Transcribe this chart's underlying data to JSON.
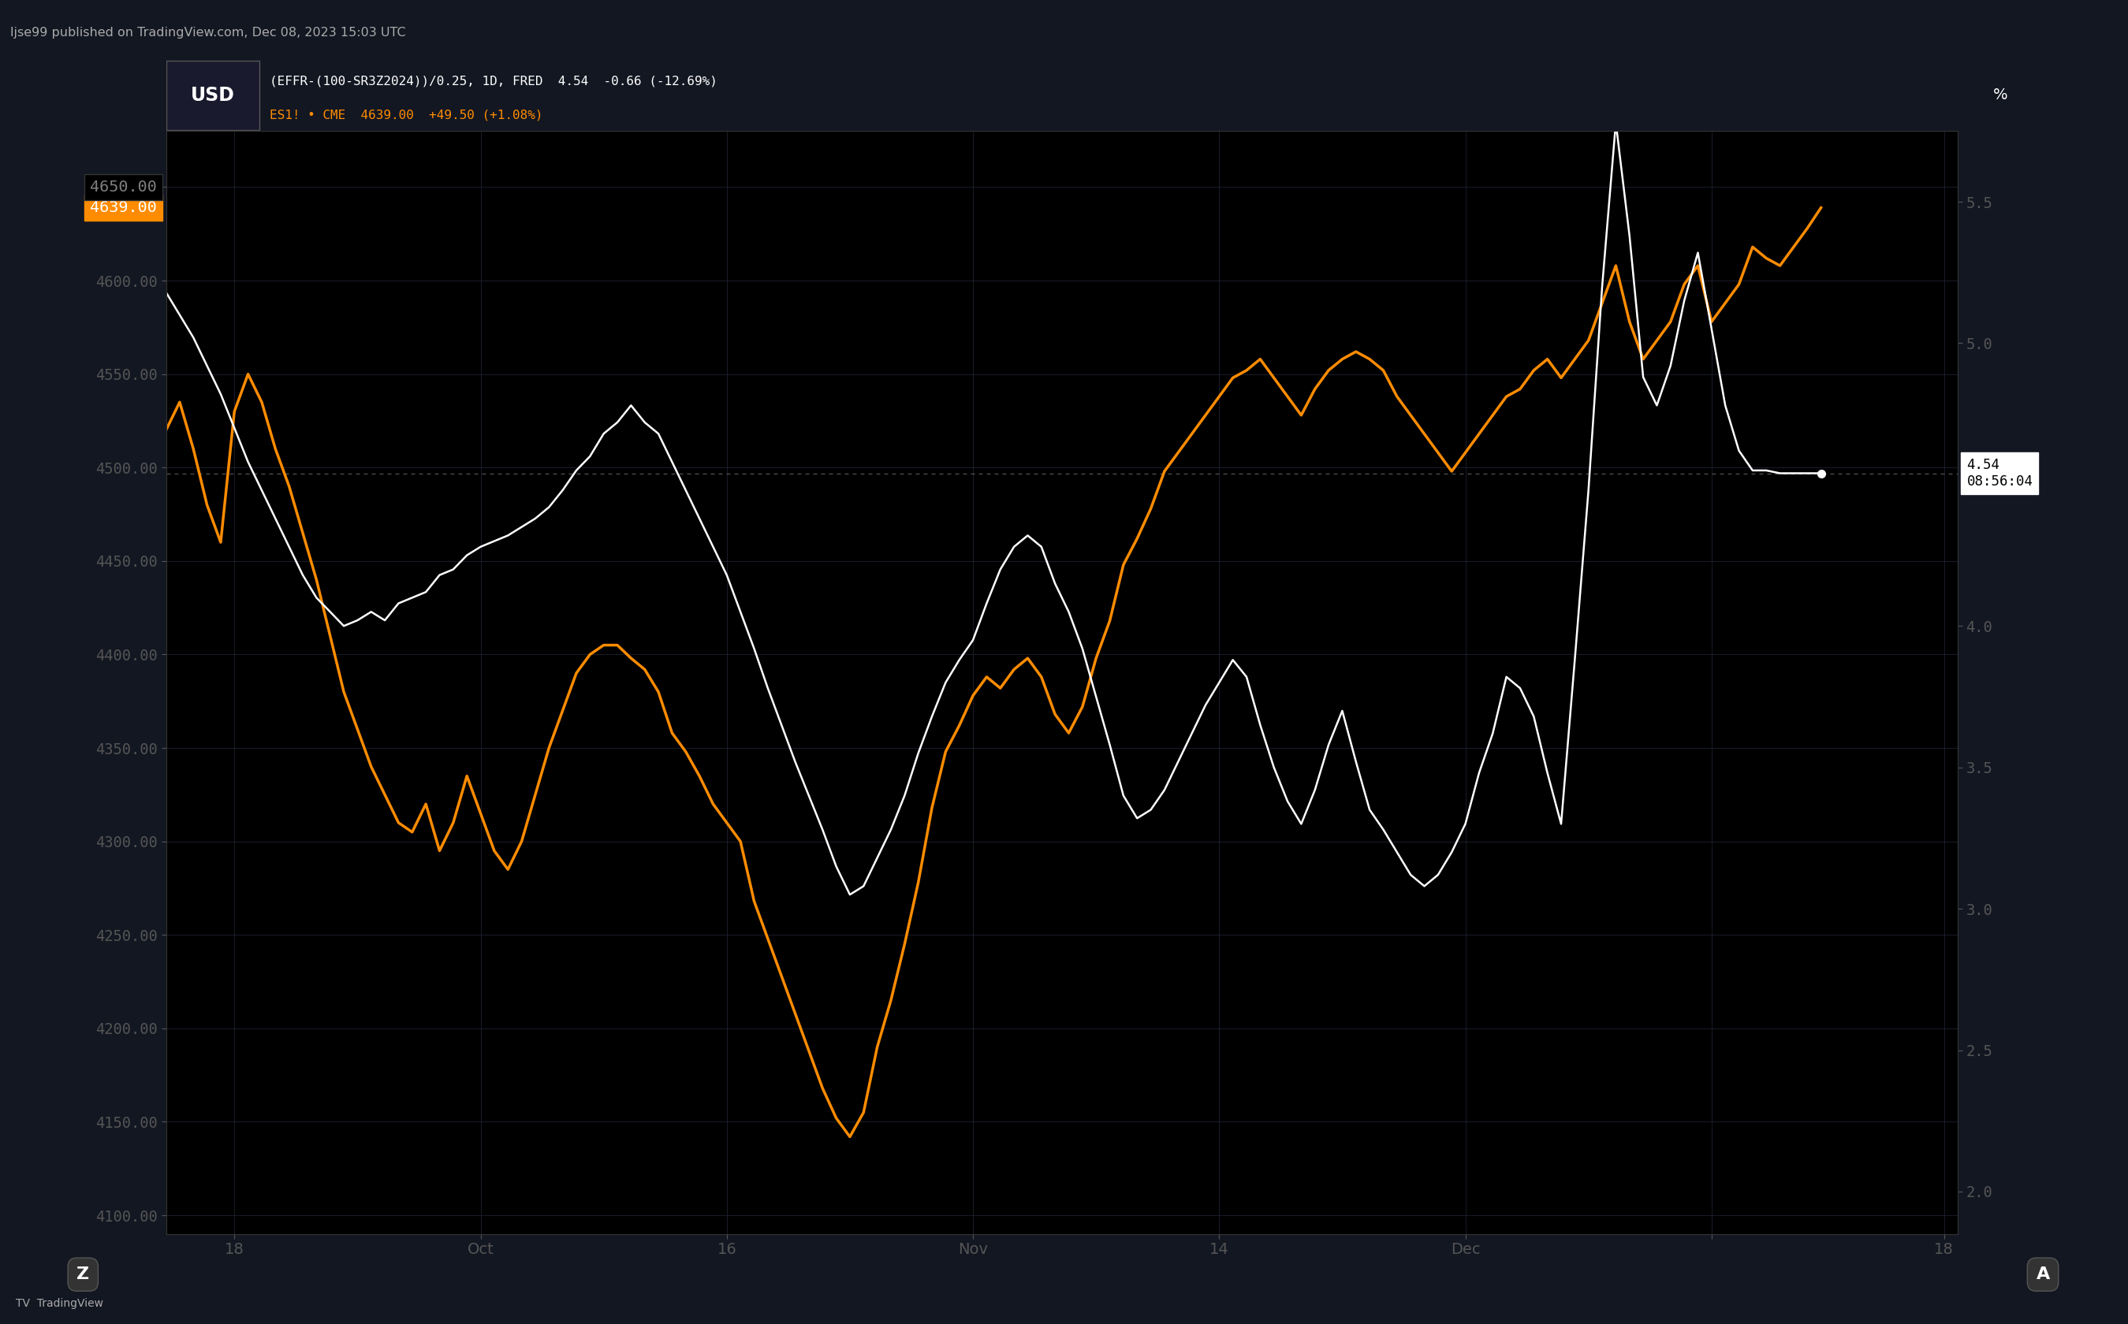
{
  "bg_color": "#131722",
  "chart_bg": "#000000",
  "orange_color": "#FF8C00",
  "white_color": "#FFFFFF",
  "grid_color": "#1e2230",
  "tick_color": "#555555",
  "sp500_data": [
    4520,
    4535,
    4510,
    4480,
    4460,
    4530,
    4550,
    4535,
    4510,
    4490,
    4465,
    4440,
    4410,
    4380,
    4360,
    4340,
    4325,
    4310,
    4305,
    4320,
    4295,
    4310,
    4335,
    4315,
    4295,
    4285,
    4300,
    4325,
    4350,
    4370,
    4390,
    4400,
    4405,
    4405,
    4398,
    4392,
    4380,
    4358,
    4348,
    4335,
    4320,
    4310,
    4300,
    4268,
    4248,
    4228,
    4208,
    4188,
    4168,
    4152,
    4142,
    4155,
    4190,
    4215,
    4245,
    4278,
    4318,
    4348,
    4362,
    4378,
    4388,
    4382,
    4392,
    4398,
    4388,
    4368,
    4358,
    4372,
    4398,
    4418,
    4448,
    4462,
    4478,
    4498,
    4508,
    4518,
    4528,
    4538,
    4548,
    4552,
    4558,
    4548,
    4538,
    4528,
    4542,
    4552,
    4558,
    4562,
    4558,
    4552,
    4538,
    4528,
    4518,
    4508,
    4498,
    4508,
    4518,
    4528,
    4538,
    4542,
    4552,
    4558,
    4548,
    4558,
    4568,
    4588,
    4608,
    4578,
    4558,
    4568,
    4578,
    4598,
    4608,
    4578,
    4588,
    4598,
    4618,
    4612,
    4608,
    4618,
    4628,
    4639
  ],
  "white_data_rate": [
    5.18,
    5.1,
    5.02,
    4.92,
    4.82,
    4.7,
    4.58,
    4.48,
    4.38,
    4.28,
    4.18,
    4.1,
    4.05,
    4.0,
    4.02,
    4.05,
    4.02,
    4.08,
    4.1,
    4.12,
    4.18,
    4.2,
    4.25,
    4.28,
    4.3,
    4.32,
    4.35,
    4.38,
    4.42,
    4.48,
    4.55,
    4.6,
    4.68,
    4.72,
    4.78,
    4.72,
    4.68,
    4.58,
    4.48,
    4.38,
    4.28,
    4.18,
    4.05,
    3.92,
    3.78,
    3.65,
    3.52,
    3.4,
    3.28,
    3.15,
    3.05,
    3.08,
    3.18,
    3.28,
    3.4,
    3.55,
    3.68,
    3.8,
    3.88,
    3.95,
    4.08,
    4.2,
    4.28,
    4.32,
    4.28,
    4.15,
    4.05,
    3.92,
    3.75,
    3.58,
    3.4,
    3.32,
    3.35,
    3.42,
    3.52,
    3.62,
    3.72,
    3.8,
    3.88,
    3.82,
    3.65,
    3.5,
    3.38,
    3.3,
    3.42,
    3.58,
    3.7,
    3.52,
    3.35,
    3.28,
    3.2,
    3.12,
    3.08,
    3.12,
    3.2,
    3.3,
    3.48,
    3.62,
    3.82,
    3.78,
    3.68,
    3.48,
    3.3,
    3.88,
    4.48,
    5.2,
    5.78,
    5.38,
    4.88,
    4.78,
    4.92,
    5.15,
    5.32,
    5.05,
    4.78,
    4.62,
    4.55,
    4.55,
    4.54,
    4.54,
    4.54,
    4.54
  ],
  "xlim": [
    0,
    131
  ],
  "sp500_ylim": [
    4090,
    4680
  ],
  "rate_ylim": [
    1.85,
    5.75
  ],
  "sp500_yticks": [
    4100,
    4150,
    4200,
    4250,
    4300,
    4350,
    4400,
    4450,
    4500,
    4550,
    4600,
    4650
  ],
  "rate_yticks": [
    2.0,
    2.5,
    3.0,
    3.5,
    4.0,
    5.0,
    5.5
  ],
  "xtick_positions": [
    5,
    23,
    41,
    59,
    77,
    95,
    113,
    130
  ],
  "xtick_labels": [
    "18",
    "Oct",
    "16",
    "Nov",
    "14",
    "Dec",
    "",
    "18"
  ],
  "hline_y_sp500": 4500,
  "current_sp500": 4639,
  "current_rate": 4.54,
  "rate_time": "08:56:04",
  "title_text": "ljse99 published on TradingView.com, Dec 08, 2023 15:03 UTC",
  "label1_text": "(EFFR-(100-SR3Z2024))/0.25, 1D, FRED  4.54  -0.66 (-12.69%)",
  "label2_text": "ES1! • CME  4639.00  +49.50 (+1.08%)"
}
